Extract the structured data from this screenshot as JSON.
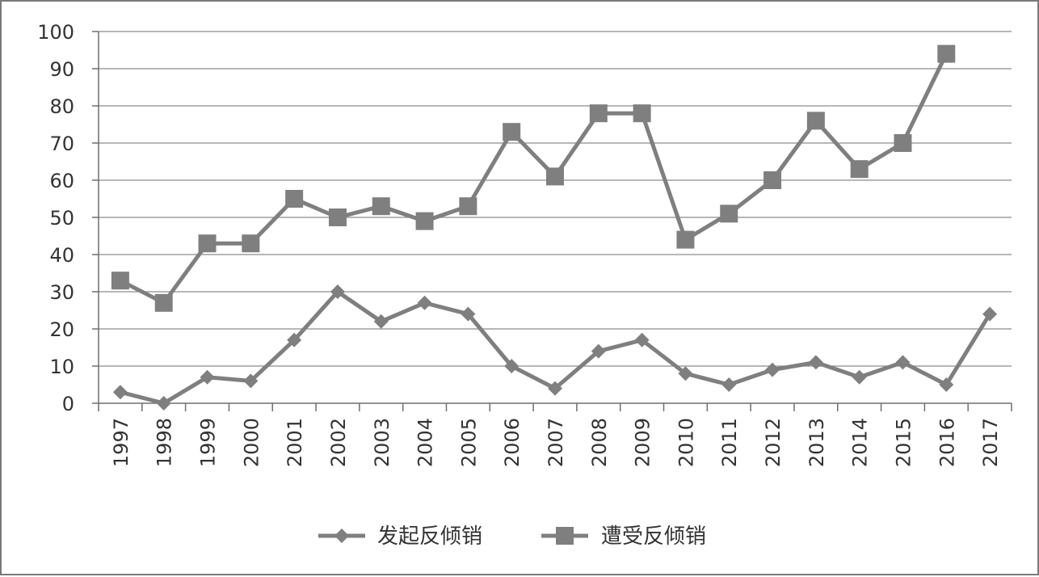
{
  "chart_data": {
    "type": "line",
    "categories": [
      "1997",
      "1998",
      "1999",
      "2000",
      "2001",
      "2002",
      "2003",
      "2004",
      "2005",
      "2006",
      "2007",
      "2008",
      "2009",
      "2010",
      "2011",
      "2012",
      "2013",
      "2014",
      "2015",
      "2016",
      "2017"
    ],
    "series": [
      {
        "name": "发起反倾销",
        "marker": "diamond",
        "color": "#7f7f7f",
        "values": [
          3,
          0,
          7,
          6,
          17,
          30,
          22,
          27,
          24,
          10,
          4,
          14,
          17,
          8,
          5,
          9,
          11,
          7,
          11,
          5,
          24
        ]
      },
      {
        "name": "遭受反倾销",
        "marker": "square",
        "color": "#7f7f7f",
        "values": [
          33,
          27,
          43,
          43,
          55,
          50,
          53,
          49,
          53,
          73,
          61,
          78,
          78,
          44,
          51,
          60,
          76,
          63,
          70,
          94,
          null
        ]
      }
    ],
    "yticks": [
      "0",
      "10",
      "20",
      "30",
      "40",
      "50",
      "60",
      "70",
      "80",
      "90",
      "100"
    ],
    "ylim": [
      0,
      100
    ],
    "grid": true,
    "legend": "bottom"
  }
}
